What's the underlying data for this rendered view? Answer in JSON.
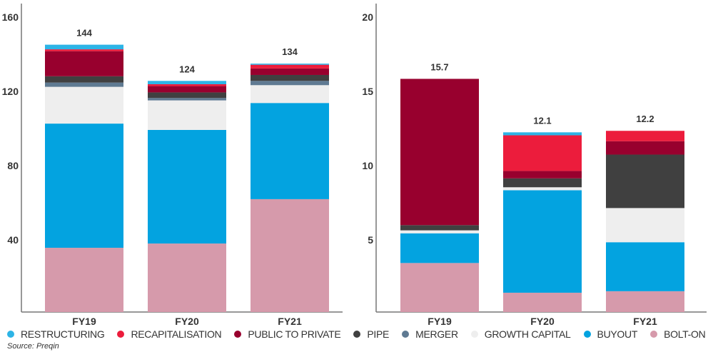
{
  "chart_data": [
    {
      "type": "bar",
      "stacked": true,
      "categories": [
        "FY19",
        "FY20",
        "FY21"
      ],
      "totals": [
        "144",
        "124",
        "134"
      ],
      "yticks": [
        "40",
        "80",
        "120",
        "160"
      ],
      "ylim": [
        0,
        160
      ],
      "series": [
        {
          "name": "BOLT-ON",
          "values": [
            34.6,
            36.9,
            60.8
          ]
        },
        {
          "name": "BUYOUT",
          "values": [
            66.9,
            61.2,
            51.8
          ]
        },
        {
          "name": "GROWTH CAPITAL",
          "values": [
            19.8,
            15.9,
            9.6
          ]
        },
        {
          "name": "MERGER",
          "values": [
            2.3,
            1.3,
            2.3
          ]
        },
        {
          "name": "PIPE",
          "values": [
            3.4,
            3.0,
            3.2
          ]
        },
        {
          "name": "PUBLIC TO PRIVATE",
          "values": [
            13.5,
            3.4,
            3.5
          ]
        },
        {
          "name": "RECAPITALISATION",
          "values": [
            1.0,
            1.0,
            2.0
          ]
        },
        {
          "name": "RESTRUCTURING",
          "values": [
            2.5,
            1.8,
            0.6
          ]
        }
      ]
    },
    {
      "type": "bar",
      "stacked": true,
      "categories": [
        "FY19",
        "FY20",
        "FY21"
      ],
      "totals": [
        "15.7",
        "12.1",
        "12.2"
      ],
      "yticks": [
        "5",
        "10",
        "15",
        "20"
      ],
      "ylim": [
        0,
        20
      ],
      "series": [
        {
          "name": "BOLT-ON",
          "values": [
            3.3,
            1.3,
            1.4
          ]
        },
        {
          "name": "BUYOUT",
          "values": [
            2.0,
            6.9,
            3.3
          ]
        },
        {
          "name": "GROWTH CAPITAL",
          "values": [
            0.2,
            0.2,
            2.3
          ]
        },
        {
          "name": "MERGER",
          "values": [
            0.0,
            0.0,
            0.0
          ]
        },
        {
          "name": "PIPE",
          "values": [
            0.35,
            0.6,
            3.6
          ]
        },
        {
          "name": "PUBLIC TO PRIVATE",
          "values": [
            9.85,
            0.5,
            0.9
          ]
        },
        {
          "name": "RECAPITALISATION",
          "values": [
            0.0,
            2.4,
            0.7
          ]
        },
        {
          "name": "RESTRUCTURING",
          "values": [
            0.0,
            0.2,
            0.0
          ]
        }
      ]
    }
  ],
  "legend": [
    {
      "name": "RESTRUCTURING",
      "color": "#2db4e6"
    },
    {
      "name": "RECAPITALISATION",
      "color": "#ec1c3c"
    },
    {
      "name": "PUBLIC TO PRIVATE",
      "color": "#98002e"
    },
    {
      "name": "PIPE",
      "color": "#404040"
    },
    {
      "name": "MERGER",
      "color": "#5f7a92"
    },
    {
      "name": "GROWTH CAPITAL",
      "color": "#eeeeee"
    },
    {
      "name": "BUYOUT",
      "color": "#03a3e0"
    },
    {
      "name": "BOLT-ON",
      "color": "#d69aab"
    }
  ],
  "source": "Source: Preqin"
}
